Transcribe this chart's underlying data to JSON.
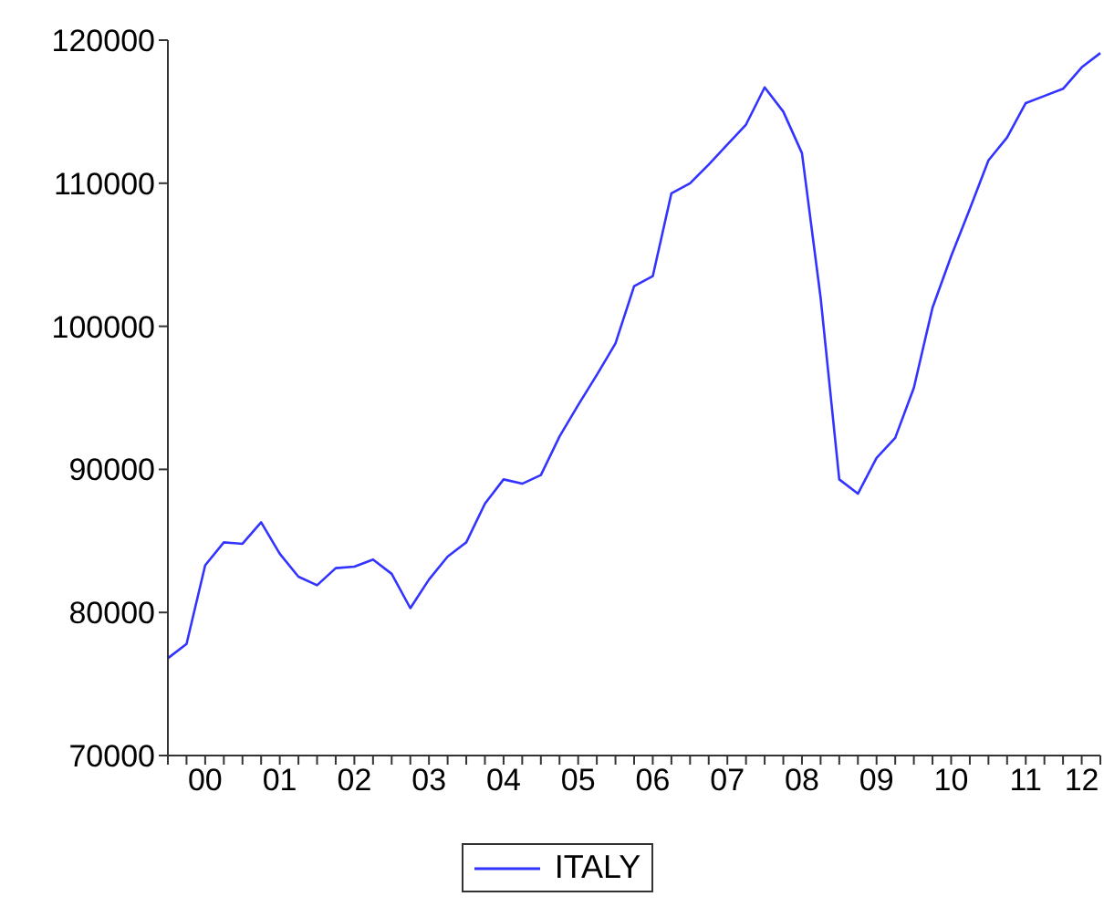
{
  "chart_data": {
    "type": "line",
    "categories": [
      null,
      null,
      "00",
      null,
      null,
      null,
      "01",
      null,
      null,
      null,
      "02",
      null,
      null,
      null,
      "03",
      null,
      null,
      null,
      "04",
      null,
      null,
      null,
      "05",
      null,
      null,
      null,
      "06",
      null,
      null,
      null,
      "07",
      null,
      null,
      null,
      "08",
      null,
      null,
      null,
      "09",
      null,
      null,
      null,
      "10",
      null,
      null,
      null,
      "11",
      null,
      null,
      "12",
      null
    ],
    "series": [
      {
        "name": "ITALY",
        "color": "#3333ff",
        "values": [
          76800,
          77800,
          83300,
          84900,
          84800,
          86300,
          84100,
          82500,
          81900,
          83100,
          83200,
          83700,
          82700,
          80300,
          82300,
          83900,
          84900,
          87600,
          89300,
          89000,
          89600,
          92300,
          94500,
          96600,
          98800,
          102800,
          103500,
          109300,
          110000,
          111300,
          112700,
          114100,
          116700,
          115000,
          112100,
          102000,
          89300,
          88300,
          90800,
          92200,
          95700,
          101300,
          104900,
          108200,
          111600,
          113200,
          115600,
          116100,
          116600,
          118100,
          119100
        ]
      }
    ],
    "ylim": [
      70000,
      120000
    ],
    "yticks": [
      70000,
      80000,
      90000,
      100000,
      110000,
      120000
    ],
    "grid": false,
    "legend": "bottom",
    "marker": "none",
    "line_style": "solid"
  }
}
